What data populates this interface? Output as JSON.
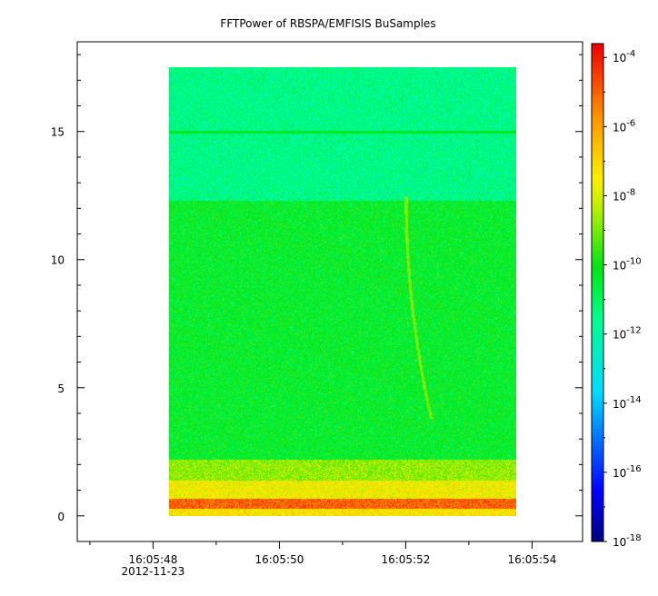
{
  "chart_data": {
    "type": "heatmap",
    "title": "FFTPower of RBSPA/EMFISIS  BuSamples",
    "x_time_seconds": [
      48.25,
      53.75
    ],
    "x_display_range_seconds": [
      46.8,
      54.8
    ],
    "x_ticks": [
      {
        "t": 48,
        "label": "16:05:48",
        "sublabel": "2012-11-23"
      },
      {
        "t": 50,
        "label": "16:05:50"
      },
      {
        "t": 52,
        "label": "16:05:52"
      },
      {
        "t": 54,
        "label": "16:05:54"
      }
    ],
    "y_range": [
      -1,
      18.5
    ],
    "y_data_extent": [
      0,
      17.5
    ],
    "y_ticks": [
      0,
      5,
      10,
      15
    ],
    "colorbar": {
      "scale": "log",
      "range_exponent": [
        -18,
        -3.6
      ],
      "ticks": [
        {
          "exp": -4,
          "base": "10",
          "sup": "-4"
        },
        {
          "exp": -6,
          "base": "10",
          "sup": "-6"
        },
        {
          "exp": -8,
          "base": "10",
          "sup": "-8"
        },
        {
          "exp": -10,
          "base": "10",
          "sup": "-10"
        },
        {
          "exp": -12,
          "base": "10",
          "sup": "-12"
        },
        {
          "exp": -14,
          "base": "10",
          "sup": "-14"
        },
        {
          "exp": -16,
          "base": "10",
          "sup": "-16"
        },
        {
          "exp": -18,
          "base": "10",
          "sup": "-18"
        }
      ]
    },
    "features": {
      "bands": [
        {
          "y_from": 12.3,
          "y_to": 17.5,
          "log_power": -11.5
        },
        {
          "y_from": 2.2,
          "y_to": 12.3,
          "log_power": -10.3
        },
        {
          "y_from": 1.4,
          "y_to": 2.2,
          "log_power": -8.7
        },
        {
          "y_from": 0.7,
          "y_to": 1.4,
          "log_power": -7.6
        },
        {
          "y_from": 0.3,
          "y_to": 0.7,
          "log_power": -5.0
        },
        {
          "y_from": 0.0,
          "y_to": 0.3,
          "log_power": -7.3
        }
      ],
      "line_15": {
        "y": 15,
        "log_power": -10.2
      },
      "whistler": {
        "t_top": 52.0,
        "y_top": 12.5,
        "t_bottom": 52.4,
        "y_bottom": 3.8,
        "log_power": -8.9
      }
    }
  }
}
